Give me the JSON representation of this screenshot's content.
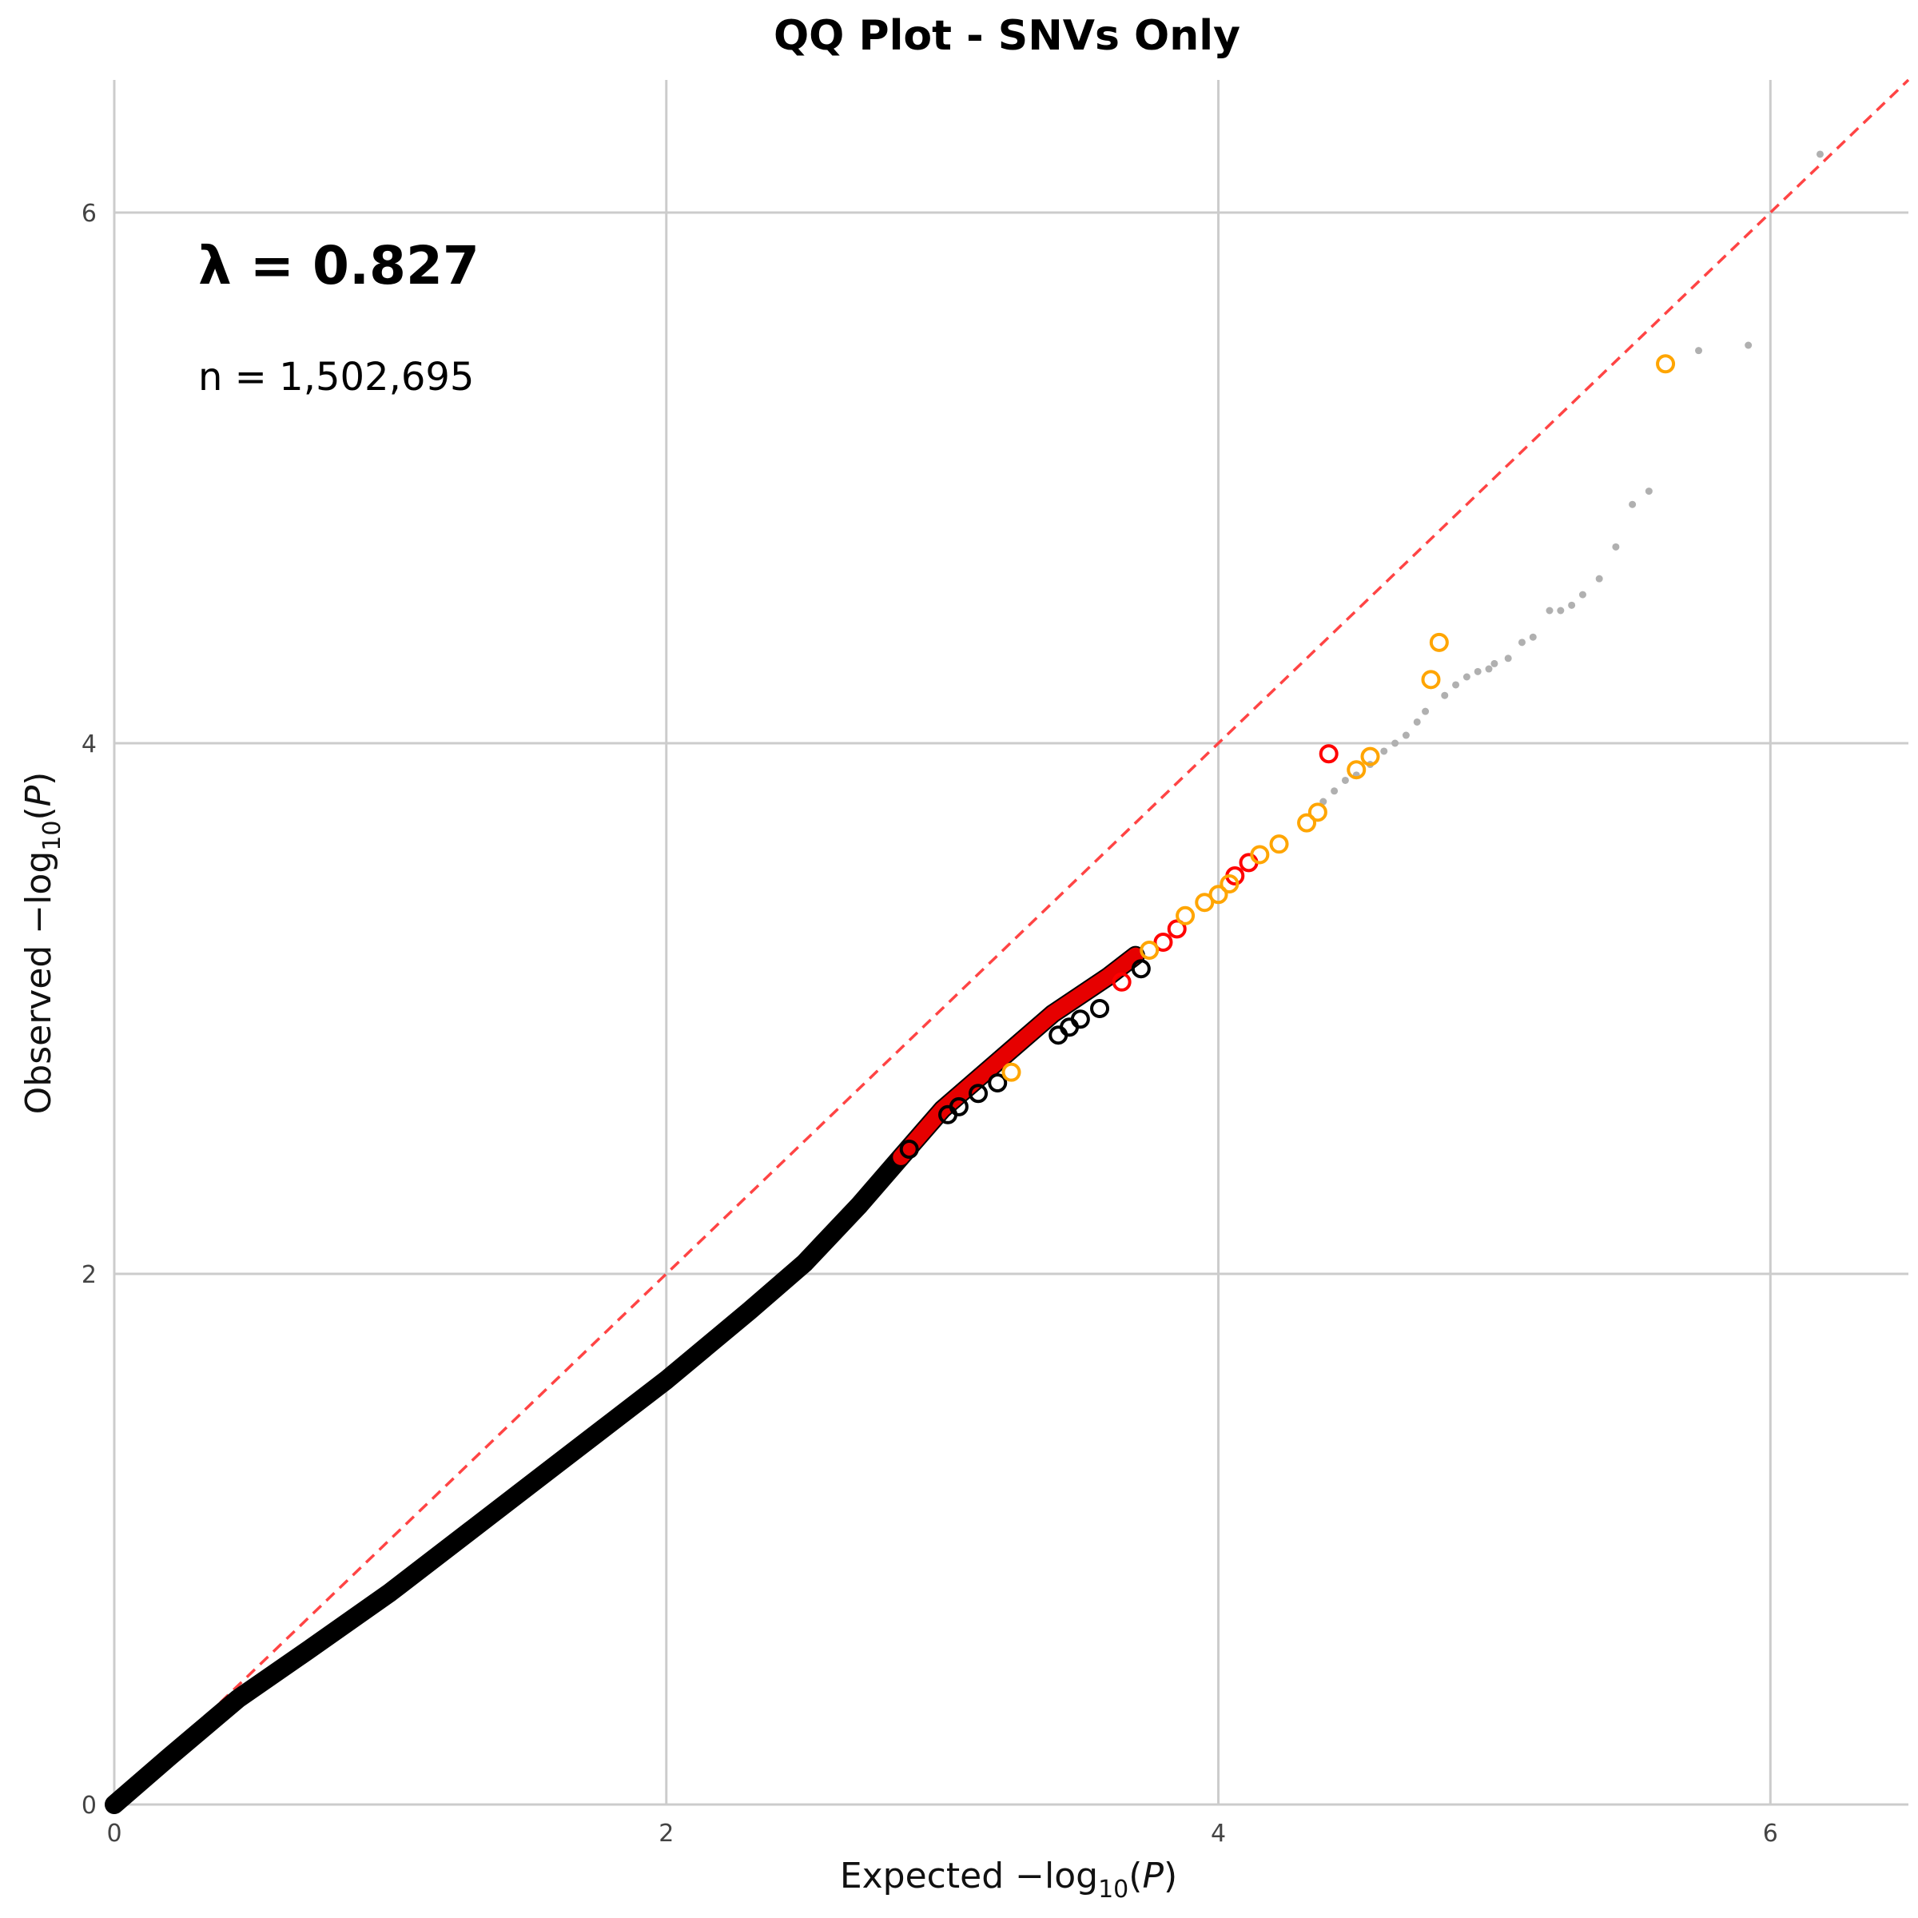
{
  "chart_data": {
    "type": "scatter",
    "title": "QQ Plot - SNVs Only",
    "xlabel": {
      "prefix": "Expected ",
      "log": "log",
      "sub": "10",
      "var": "P"
    },
    "ylabel": {
      "prefix": "Observed ",
      "log": "log",
      "sub": "10",
      "var": "P"
    },
    "xlim": [
      0,
      6.5
    ],
    "ylim": [
      0,
      6.5
    ],
    "xticks": [
      0,
      2,
      4,
      6
    ],
    "yticks": [
      0,
      2,
      4,
      6
    ],
    "grid": true,
    "annotations": {
      "lambda": "λ = 0.827",
      "n": "n = 1,502,695"
    },
    "colors": {
      "main": "#000000",
      "red": "#ff0000",
      "orange": "#ffa500",
      "grey": "#b0b0b0",
      "diagonal": "#ff4444",
      "grid": "#cccccc"
    },
    "reference_line": {
      "from": [
        0,
        0
      ],
      "to": [
        6.5,
        6.5
      ],
      "style": "dashed"
    },
    "curve_points": [
      [
        0.0,
        0.0
      ],
      [
        0.2,
        0.18
      ],
      [
        0.45,
        0.4
      ],
      [
        0.7,
        0.58
      ],
      [
        1.0,
        0.8
      ],
      [
        1.3,
        1.04
      ],
      [
        1.6,
        1.28
      ],
      [
        2.0,
        1.6
      ],
      [
        2.3,
        1.86
      ],
      [
        2.5,
        2.04
      ],
      [
        2.7,
        2.26
      ],
      [
        2.85,
        2.44
      ],
      [
        3.0,
        2.62
      ],
      [
        3.2,
        2.8
      ],
      [
        3.4,
        2.98
      ],
      [
        3.6,
        3.12
      ],
      [
        3.7,
        3.2
      ]
    ],
    "black_circles": [
      [
        2.88,
        2.47
      ],
      [
        3.02,
        2.6
      ],
      [
        3.06,
        2.63
      ],
      [
        3.13,
        2.68
      ],
      [
        3.2,
        2.72
      ],
      [
        3.42,
        2.9
      ],
      [
        3.46,
        2.93
      ],
      [
        3.5,
        2.96
      ],
      [
        3.57,
        3.0
      ],
      [
        3.72,
        3.15
      ]
    ],
    "red_circles": [
      [
        3.65,
        3.1
      ],
      [
        3.8,
        3.25
      ],
      [
        3.85,
        3.3
      ],
      [
        4.06,
        3.5
      ],
      [
        4.11,
        3.55
      ],
      [
        4.4,
        3.96
      ]
    ],
    "orange_circles": [
      [
        3.25,
        2.76
      ],
      [
        3.75,
        3.22
      ],
      [
        3.88,
        3.35
      ],
      [
        3.95,
        3.4
      ],
      [
        4.0,
        3.43
      ],
      [
        4.04,
        3.47
      ],
      [
        4.15,
        3.58
      ],
      [
        4.22,
        3.62
      ],
      [
        4.32,
        3.7
      ],
      [
        4.36,
        3.74
      ],
      [
        4.5,
        3.9
      ],
      [
        4.55,
        3.95
      ],
      [
        4.77,
        4.24
      ],
      [
        4.8,
        4.38
      ],
      [
        5.62,
        5.43
      ]
    ],
    "grey_points": [
      [
        4.38,
        3.78
      ],
      [
        4.42,
        3.82
      ],
      [
        4.46,
        3.86
      ],
      [
        4.5,
        3.88
      ],
      [
        4.55,
        3.92
      ],
      [
        4.6,
        3.97
      ],
      [
        4.64,
        4.0
      ],
      [
        4.68,
        4.03
      ],
      [
        4.72,
        4.08
      ],
      [
        4.75,
        4.12
      ],
      [
        4.82,
        4.18
      ],
      [
        4.86,
        4.22
      ],
      [
        4.9,
        4.25
      ],
      [
        4.94,
        4.27
      ],
      [
        4.98,
        4.28
      ],
      [
        5.0,
        4.3
      ],
      [
        5.05,
        4.32
      ],
      [
        5.1,
        4.38
      ],
      [
        5.14,
        4.4
      ],
      [
        5.2,
        4.5
      ],
      [
        5.24,
        4.5
      ],
      [
        5.28,
        4.52
      ],
      [
        5.32,
        4.56
      ],
      [
        5.38,
        4.62
      ],
      [
        5.44,
        4.74
      ],
      [
        5.5,
        4.9
      ],
      [
        5.56,
        4.95
      ],
      [
        5.74,
        5.48
      ],
      [
        5.92,
        5.5
      ],
      [
        6.18,
        6.22
      ]
    ]
  }
}
